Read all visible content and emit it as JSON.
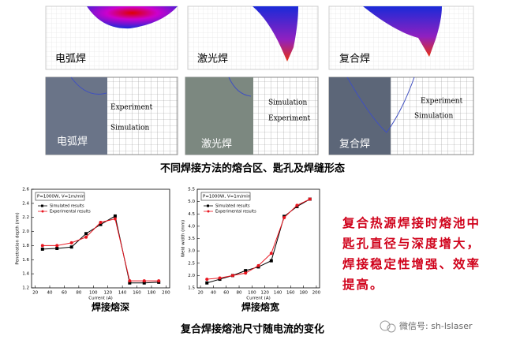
{
  "top_panels": [
    {
      "label": "电弧焊"
    },
    {
      "label": "激光焊"
    },
    {
      "label": "复合焊"
    }
  ],
  "micro_panels": [
    {
      "label": "电弧焊",
      "annotations": [
        "Experiment",
        "Simulation"
      ]
    },
    {
      "label": "激光焊",
      "annotations": [
        "Simulation",
        "Experiment"
      ]
    },
    {
      "label": "复合焊",
      "annotations": [
        "Experiment",
        "Simulation"
      ]
    }
  ],
  "caption_top": "不同焊接方法的熔合区、匙孔及焊缝形态",
  "chart_data": [
    {
      "type": "line",
      "caption": "焊接熔深",
      "legend_title": "P=1000W, V=1m/min",
      "xlabel": "Current (A)",
      "ylabel": "Penetration depth (mm)",
      "x": [
        30,
        50,
        70,
        90,
        110,
        130,
        150,
        170,
        190
      ],
      "series": [
        {
          "name": "Simulated results",
          "color": "#000000",
          "marker": "square",
          "values": [
            1.75,
            1.76,
            1.78,
            1.97,
            2.1,
            2.22,
            1.27,
            1.27,
            1.28
          ]
        },
        {
          "name": "Experimental results",
          "color": "#e8141e",
          "marker": "circle",
          "values": [
            1.8,
            1.8,
            1.84,
            1.92,
            2.13,
            2.18,
            1.3,
            1.3,
            1.3
          ]
        }
      ],
      "xlim": [
        15,
        205
      ],
      "ylim": [
        1.2,
        2.6
      ],
      "xticks": [
        20,
        40,
        60,
        80,
        100,
        120,
        140,
        160,
        180,
        200
      ],
      "yticks": [
        1.2,
        1.4,
        1.6,
        1.8,
        {
          "value": 2,
          "label": "2.0"
        },
        2.2,
        2.4,
        2.6
      ]
    },
    {
      "type": "line",
      "caption": "焊接熔宽",
      "legend_title": "P=1000W, V=1m/min",
      "xlabel": "Current (A)",
      "ylabel": "Weld width (mm)",
      "x": [
        30,
        50,
        70,
        90,
        110,
        130,
        150,
        170,
        190
      ],
      "series": [
        {
          "name": "Simulated results",
          "color": "#000000",
          "marker": "square",
          "values": [
            1.7,
            1.85,
            2.0,
            2.2,
            2.35,
            2.6,
            4.4,
            4.8,
            5.1
          ]
        },
        {
          "name": "Experimental results",
          "color": "#e8141e",
          "marker": "circle",
          "values": [
            1.85,
            1.9,
            2.0,
            2.1,
            2.4,
            2.9,
            4.35,
            4.85,
            5.1
          ]
        }
      ],
      "xlim": [
        15,
        205
      ],
      "ylim": [
        1.5,
        5.5
      ],
      "xticks": [
        20,
        40,
        60,
        80,
        100,
        120,
        140,
        160,
        180,
        200
      ],
      "yticks": [
        1.5,
        {
          "value": 2,
          "label": "2.0"
        },
        2.5,
        {
          "value": 3,
          "label": "3.0"
        },
        3.5,
        {
          "value": 4,
          "label": "4.0"
        },
        4.5,
        {
          "value": 5,
          "label": "5.0"
        },
        5.5
      ]
    }
  ],
  "caption_bottom": "复合焊接熔池尺寸随电流的变化",
  "note": "复合热源焊接时熔池中匙孔直径与深度增大，焊接稳定性增强、效率提高。",
  "watermark": "微信号: sh-lslaser"
}
